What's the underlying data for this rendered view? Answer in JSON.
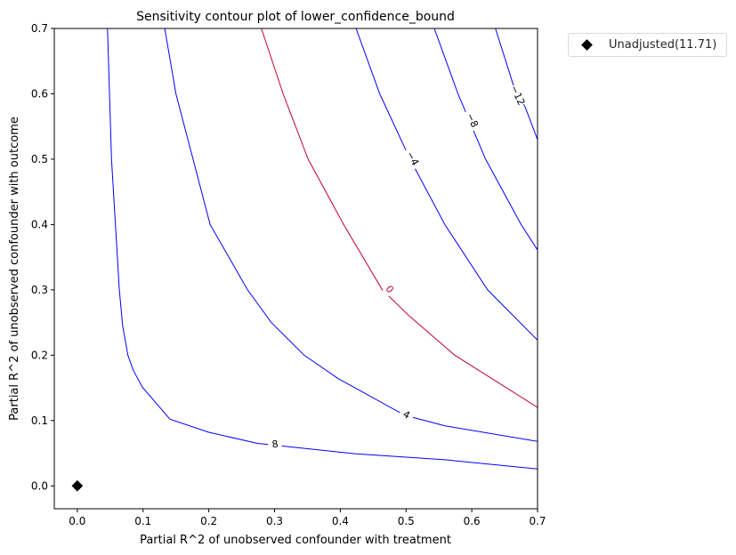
{
  "chart_data": {
    "type": "contour",
    "title": "Sensitivity contour plot of lower_confidence_bound",
    "xlabel": "Partial R^2 of unobserved confounder with treatment",
    "ylabel": "Partial R^2 of unobserved confounder with outcome",
    "xlim": [
      -0.035,
      0.7
    ],
    "ylim": [
      -0.035,
      0.7
    ],
    "xticks": [
      "0.0",
      "0.1",
      "0.2",
      "0.3",
      "0.4",
      "0.5",
      "0.6",
      "0.7"
    ],
    "yticks": [
      "0.0",
      "0.1",
      "0.2",
      "0.3",
      "0.4",
      "0.5",
      "0.6",
      "0.7"
    ],
    "grid": false,
    "legend_position": "outside upper right",
    "levels": [
      {
        "label": "8",
        "value": 8,
        "color": "#0000ff",
        "points": [
          [
            0.046,
            0.7
          ],
          [
            0.052,
            0.5
          ],
          [
            0.058,
            0.4
          ],
          [
            0.064,
            0.3
          ],
          [
            0.069,
            0.245
          ],
          [
            0.077,
            0.2
          ],
          [
            0.085,
            0.177
          ],
          [
            0.099,
            0.151
          ],
          [
            0.141,
            0.102
          ],
          [
            0.2,
            0.082
          ],
          [
            0.274,
            0.065
          ],
          [
            0.424,
            0.049
          ],
          [
            0.559,
            0.04
          ],
          [
            0.7,
            0.026
          ]
        ]
      },
      {
        "label": "4",
        "value": 4,
        "color": "#0000ff",
        "points": [
          [
            0.133,
            0.7
          ],
          [
            0.15,
            0.6
          ],
          [
            0.176,
            0.5
          ],
          [
            0.202,
            0.4
          ],
          [
            0.259,
            0.3
          ],
          [
            0.295,
            0.25
          ],
          [
            0.345,
            0.2
          ],
          [
            0.397,
            0.164
          ],
          [
            0.498,
            0.108
          ],
          [
            0.559,
            0.092
          ],
          [
            0.7,
            0.068
          ]
        ]
      },
      {
        "label": "0",
        "value": 0,
        "color": "#c00030",
        "points": [
          [
            0.28,
            0.7
          ],
          [
            0.313,
            0.6
          ],
          [
            0.351,
            0.5
          ],
          [
            0.405,
            0.4
          ],
          [
            0.464,
            0.3
          ],
          [
            0.505,
            0.26
          ],
          [
            0.574,
            0.2
          ],
          [
            0.7,
            0.12
          ]
        ]
      },
      {
        "label": "−4",
        "value": -4,
        "color": "#0000ff",
        "points": [
          [
            0.424,
            0.7
          ],
          [
            0.46,
            0.6
          ],
          [
            0.506,
            0.5
          ],
          [
            0.559,
            0.4
          ],
          [
            0.624,
            0.3
          ],
          [
            0.7,
            0.223
          ]
        ]
      },
      {
        "label": "−8",
        "value": -8,
        "color": "#0000ff",
        "points": [
          [
            0.543,
            0.7
          ],
          [
            0.579,
            0.6
          ],
          [
            0.621,
            0.5
          ],
          [
            0.675,
            0.4
          ],
          [
            0.7,
            0.361
          ]
        ]
      },
      {
        "label": "−12",
        "value": -12,
        "color": "#0000ff",
        "points": [
          [
            0.636,
            0.7
          ],
          [
            0.663,
            0.614
          ],
          [
            0.681,
            0.58
          ],
          [
            0.7,
            0.53
          ]
        ]
      }
    ],
    "markers": [
      {
        "label": "Unadjusted(11.71)",
        "x": 0.0,
        "y": 0.0,
        "shape": "diamond",
        "color": "#000000"
      }
    ]
  },
  "legend": {
    "label": "Unadjusted(11.71)"
  }
}
